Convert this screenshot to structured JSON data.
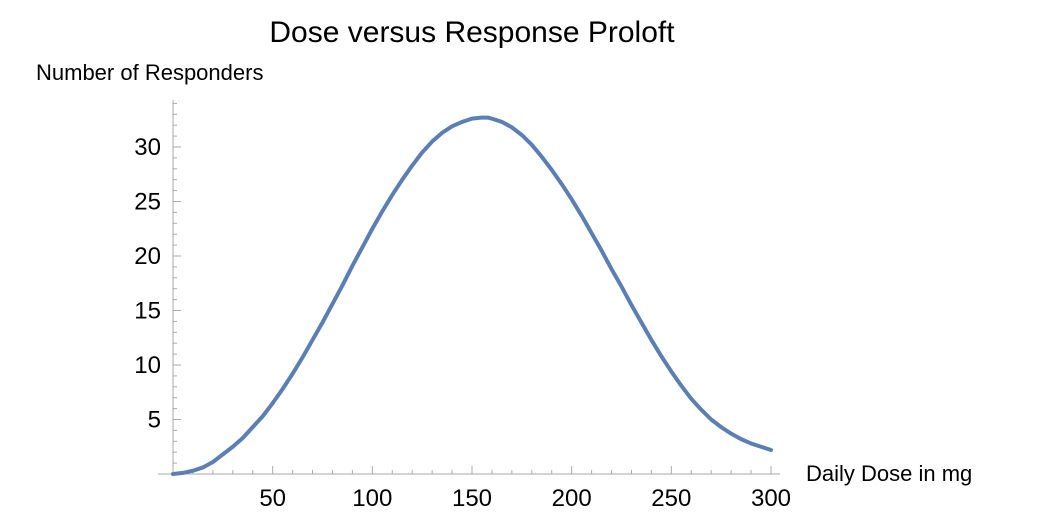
{
  "chart_data": {
    "type": "line",
    "title": "Dose versus Response Proloft",
    "xlabel": "Daily Dose in mg",
    "ylabel": "Number of Responders",
    "xlim": [
      0,
      300
    ],
    "ylim": [
      0,
      34
    ],
    "x_ticks": [
      50,
      100,
      150,
      200,
      250,
      300
    ],
    "y_ticks": [
      5,
      10,
      15,
      20,
      25,
      30
    ],
    "grid": false,
    "legend": "none",
    "color": "#5b7fb4",
    "series": [
      {
        "x": [
          0,
          5,
          10,
          15,
          20,
          25,
          30,
          35,
          40,
          45,
          50,
          55,
          60,
          65,
          70,
          75,
          80,
          85,
          90,
          95,
          100,
          105,
          110,
          115,
          120,
          125,
          130,
          135,
          140,
          145,
          150,
          155,
          158,
          160,
          165,
          170,
          175,
          180,
          185,
          190,
          195,
          200,
          205,
          210,
          215,
          220,
          225,
          230,
          235,
          240,
          245,
          250,
          255,
          260,
          265,
          270,
          275,
          280,
          285,
          290,
          295,
          300
        ],
        "y": [
          0,
          0.1,
          0.3,
          0.6,
          1.1,
          1.8,
          2.5,
          3.3,
          4.3,
          5.3,
          6.5,
          7.8,
          9.2,
          10.7,
          12.3,
          13.9,
          15.6,
          17.3,
          19.1,
          20.8,
          22.5,
          24.1,
          25.6,
          27.0,
          28.3,
          29.5,
          30.5,
          31.3,
          31.9,
          32.3,
          32.6,
          32.7,
          32.7,
          32.6,
          32.3,
          31.8,
          31.1,
          30.2,
          29.1,
          27.9,
          26.6,
          25.2,
          23.7,
          22.1,
          20.5,
          18.8,
          17.2,
          15.5,
          13.9,
          12.3,
          10.8,
          9.4,
          8.1,
          6.9,
          5.9,
          5.0,
          4.3,
          3.7,
          3.2,
          2.8,
          2.5,
          2.2
        ]
      }
    ]
  }
}
